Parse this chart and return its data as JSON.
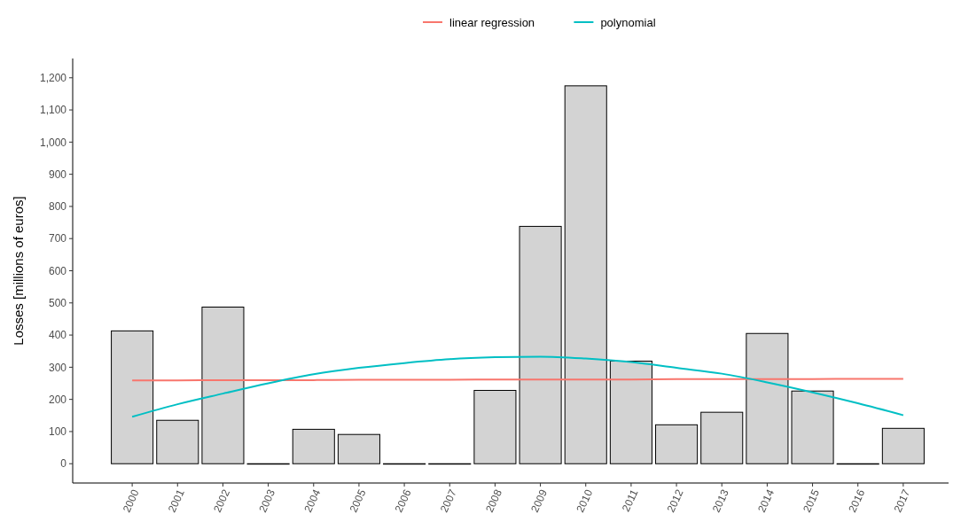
{
  "chart_data": {
    "type": "bar",
    "ylabel": "Losses [millions of euros]",
    "categories": [
      "2000",
      "2001",
      "2002",
      "2003",
      "2004",
      "2005",
      "2006",
      "2007",
      "2008",
      "2009",
      "2010",
      "2011",
      "2012",
      "2013",
      "2014",
      "2015",
      "2016",
      "2017"
    ],
    "series": [
      {
        "color": "#d3d3d3",
        "values": [
          413,
          135,
          487,
          0,
          107,
          91,
          0,
          0,
          228,
          738,
          1175,
          319,
          121,
          160,
          405,
          226,
          0,
          110
        ]
      },
      {
        "type": "line",
        "name": "linear regression",
        "color": "#f8766d",
        "values": [
          259,
          259,
          260,
          260,
          260,
          261,
          261,
          261,
          262,
          262,
          262,
          262,
          263,
          263,
          263,
          263,
          264,
          264
        ]
      },
      {
        "type": "line",
        "name": "polynomial",
        "color": "#00bfc4",
        "values": [
          146,
          185,
          218,
          250,
          278,
          298,
          313,
          325,
          331,
          333,
          327,
          316,
          298,
          280,
          253,
          222,
          188,
          151
        ]
      }
    ],
    "ylim": [
      -60,
      1260
    ],
    "yticks": [
      0,
      100,
      200,
      300,
      400,
      500,
      600,
      700,
      800,
      900,
      {
        "value": 1000,
        "label": "1,000"
      },
      {
        "value": 1100,
        "label": "1,100"
      },
      {
        "value": 1200,
        "label": "1,200"
      }
    ],
    "grid": false,
    "legend": "top",
    "marker": "none",
    "line_style": "solid"
  }
}
